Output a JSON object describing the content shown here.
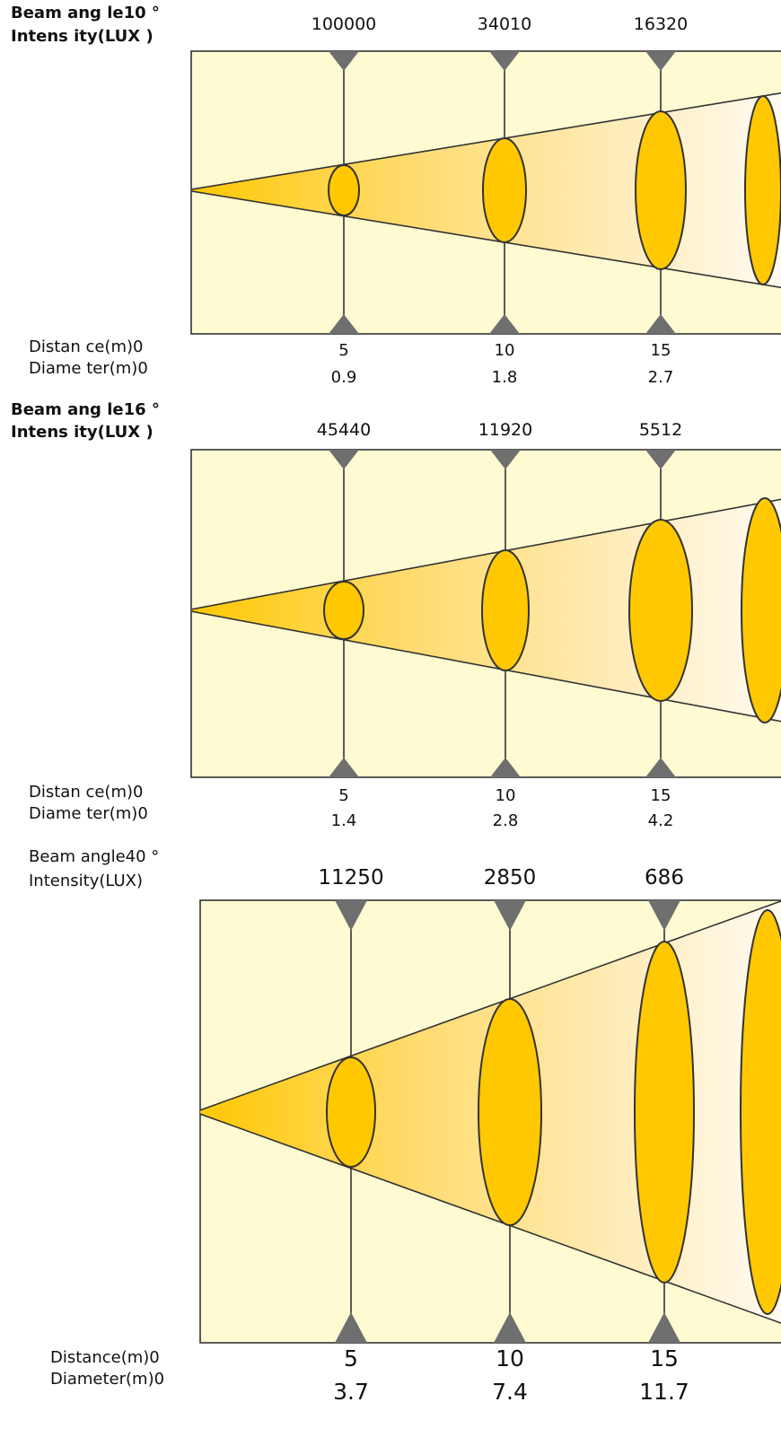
{
  "panels": [
    {
      "beam_label": "Beam ang le10 °",
      "intensity_label": "Intens ity(LUX )",
      "distance_label": "Distan ce(m)0",
      "diameter_label": "Diame ter(m)0",
      "intensities": [
        "100000",
        "34010",
        "16320"
      ],
      "distances": [
        "5",
        "10",
        "15"
      ],
      "diameters": [
        "0.9",
        "1.8",
        "2.7"
      ]
    },
    {
      "beam_label": "Beam ang le16 °",
      "intensity_label": "Intens ity(LUX )",
      "distance_label": "Distan ce(m)0",
      "diameter_label": "Diame ter(m)0",
      "intensities": [
        "45440",
        "11920",
        "5512"
      ],
      "distances": [
        "5",
        "10",
        "15"
      ],
      "diameters": [
        "1.4",
        "2.8",
        "4.2"
      ]
    },
    {
      "beam_label": "Beam angle40  °",
      "intensity_label": "Intensity(LUX)",
      "distance_label": "Distance(m)0",
      "diameter_label": "Diameter(m)0",
      "intensities": [
        "11250",
        "2850",
        "686"
      ],
      "distances": [
        "5",
        "10",
        "15"
      ],
      "diameters": [
        "3.7",
        "7.4",
        "11.7"
      ]
    }
  ],
  "colors": {
    "panel_bg": "#FEFBD2",
    "beam": "#FFC800",
    "marker": "#6F6F6F",
    "line": "#333333"
  }
}
